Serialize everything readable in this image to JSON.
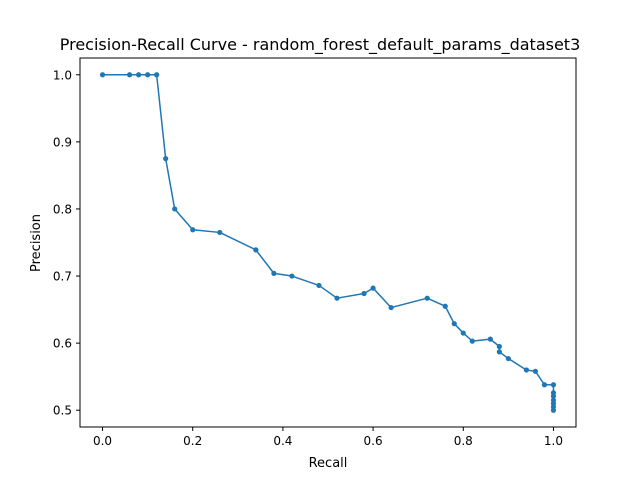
{
  "chart_data": {
    "type": "line",
    "title": "Precision-Recall Curve - random_forest_default_params_dataset3",
    "xlabel": "Recall",
    "ylabel": "Precision",
    "xlim": [
      -0.05,
      1.05
    ],
    "ylim": [
      0.475,
      1.025
    ],
    "xticks": [
      "0.0",
      "0.2",
      "0.4",
      "0.6",
      "0.8",
      "1.0"
    ],
    "yticks": [
      "0.5",
      "0.6",
      "0.7",
      "0.8",
      "0.9",
      "1.0"
    ],
    "grid": false,
    "series": [
      {
        "color": "#1f77b4",
        "x": [
          0.0,
          0.06,
          0.08,
          0.1,
          0.12,
          0.14,
          0.16,
          0.2,
          0.26,
          0.34,
          0.38,
          0.42,
          0.48,
          0.52,
          0.58,
          0.6,
          0.64,
          0.72,
          0.76,
          0.78,
          0.8,
          0.82,
          0.86,
          0.88,
          0.88,
          0.9,
          0.94,
          0.96,
          0.98,
          1.0,
          1.0,
          1.0,
          1.0,
          1.0,
          1.0,
          1.0
        ],
        "y": [
          1.0,
          1.0,
          1.0,
          1.0,
          1.0,
          0.875,
          0.8,
          0.769,
          0.765,
          0.739,
          0.704,
          0.7,
          0.686,
          0.667,
          0.674,
          0.682,
          0.653,
          0.667,
          0.655,
          0.629,
          0.615,
          0.603,
          0.606,
          0.595,
          0.587,
          0.577,
          0.56,
          0.558,
          0.538,
          0.538,
          0.526,
          0.521,
          0.515,
          0.51,
          0.505,
          0.5
        ]
      }
    ]
  }
}
